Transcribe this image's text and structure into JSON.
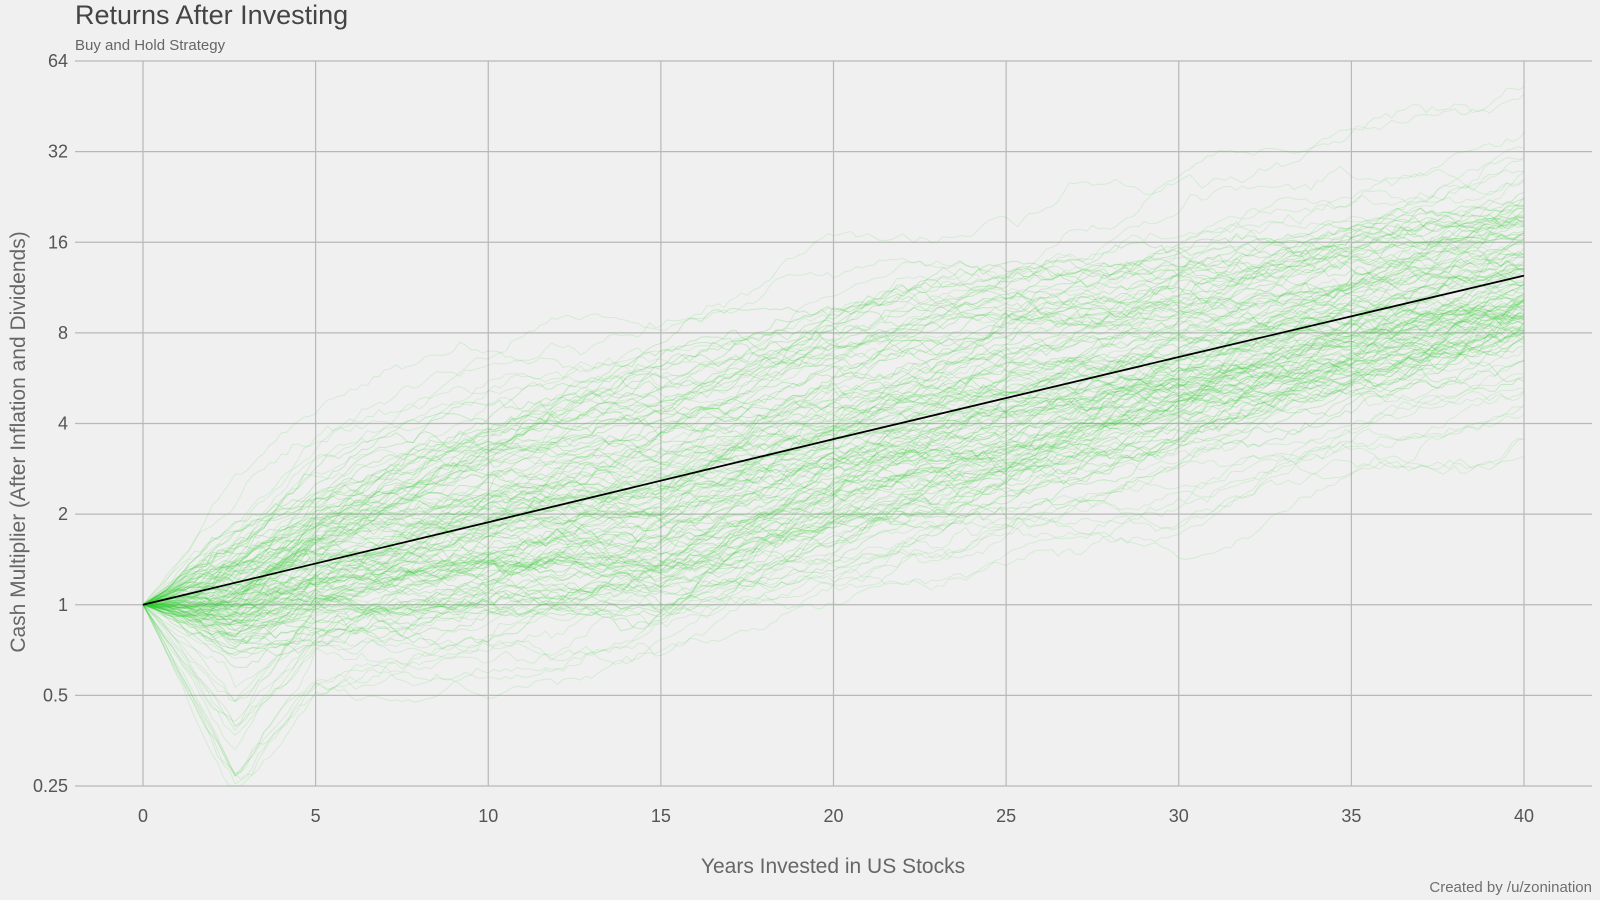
{
  "chart_data": {
    "type": "line",
    "title": "Returns After Investing",
    "subtitle": "Buy and Hold Strategy",
    "xlabel": "Years Invested in US Stocks",
    "ylabel": "Cash Multiplier (After Inflation and Dividends)",
    "caption": "Created by /u/zonination",
    "x_scale": "linear",
    "y_scale": "log2",
    "xlim": [
      0,
      40
    ],
    "ylim": [
      0.25,
      64
    ],
    "x_ticks": [
      0,
      5,
      10,
      15,
      20,
      25,
      30,
      35,
      40
    ],
    "x_tick_labels": [
      "0",
      "5",
      "10",
      "15",
      "20",
      "25",
      "30",
      "35",
      "40"
    ],
    "y_ticks": [
      0.25,
      0.5,
      1,
      2,
      4,
      8,
      16,
      32,
      64
    ],
    "y_tick_labels": [
      "0.25",
      "0.5",
      "1",
      "2",
      "4",
      "8",
      "16",
      "32",
      "64"
    ],
    "grid": true,
    "legend": "none",
    "series_color": "#33cc33",
    "trend_color": "#000000",
    "trend_line": {
      "x": [
        0,
        10,
        20,
        30,
        40
      ],
      "y": [
        1,
        1.88,
        3.55,
        6.65,
        12.4
      ]
    },
    "envelope": {
      "x": [
        0,
        2.7,
        5,
        10,
        15,
        20,
        25,
        30,
        35,
        40
      ],
      "upper": [
        1,
        2.4,
        4.0,
        7.0,
        8.8,
        13,
        16.5,
        22,
        32,
        50
      ],
      "lower": [
        1,
        0.23,
        0.5,
        0.55,
        0.7,
        0.95,
        1.4,
        1.8,
        2.8,
        3.5
      ],
      "core_upper": [
        1,
        1.6,
        2.3,
        4.0,
        6.0,
        9.0,
        11.5,
        14,
        17,
        20
      ],
      "core_lower": [
        1,
        0.75,
        0.85,
        0.9,
        1.0,
        1.6,
        2.3,
        3.3,
        5.0,
        7.0
      ]
    },
    "simulated_path_count": 140
  }
}
